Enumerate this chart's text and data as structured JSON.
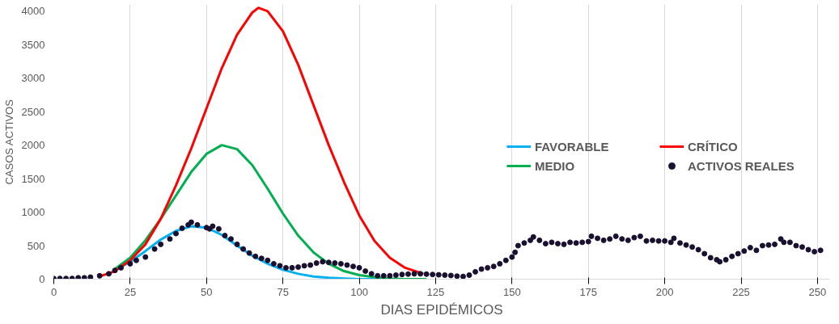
{
  "chart_data": {
    "type": "line",
    "xlabel": "DIAS EPIDÉMICOS",
    "ylabel": "CASOS ACTIVOS",
    "xlim": [
      0,
      254
    ],
    "xticks": [
      0,
      25,
      50,
      75,
      100,
      125,
      150,
      175,
      200,
      225,
      250
    ],
    "ylim": [
      0,
      4100
    ],
    "yticks": [
      0,
      500,
      1000,
      1500,
      2000,
      2500,
      3000,
      3500,
      4000
    ],
    "grid": "x",
    "legend": "right",
    "line_style": "solid",
    "series": [
      {
        "name": "FAVORABLE",
        "color": "#00b0f0",
        "x": [
          20,
          25,
          30,
          35,
          40,
          45,
          50,
          55,
          60,
          65,
          70,
          75,
          80,
          85,
          90,
          95,
          100,
          105,
          110
        ],
        "values": [
          130,
          260,
          420,
          590,
          720,
          790,
          770,
          660,
          500,
          350,
          230,
          140,
          80,
          40,
          20,
          10,
          0,
          0,
          0
        ]
      },
      {
        "name": "MEDIO",
        "color": "#00b050",
        "x": [
          20,
          25,
          30,
          35,
          40,
          45,
          50,
          55,
          60,
          65,
          70,
          75,
          80,
          85,
          90,
          95,
          100,
          105,
          110,
          115,
          122
        ],
        "values": [
          150,
          320,
          580,
          900,
          1250,
          1600,
          1870,
          2000,
          1940,
          1700,
          1350,
          980,
          650,
          400,
          230,
          120,
          60,
          30,
          10,
          0,
          0
        ]
      },
      {
        "name": "CRÍTICO",
        "color": "#ff0000",
        "x": [
          15,
          20,
          25,
          30,
          35,
          40,
          45,
          50,
          55,
          60,
          65,
          67,
          70,
          75,
          80,
          85,
          90,
          95,
          100,
          105,
          110,
          115,
          121
        ],
        "values": [
          40,
          120,
          280,
          520,
          900,
          1400,
          1950,
          2550,
          3150,
          3650,
          3980,
          4050,
          4000,
          3700,
          3200,
          2600,
          2000,
          1450,
          950,
          570,
          320,
          170,
          80
        ]
      },
      {
        "name": "ACTIVOS REALES",
        "type": "scatter",
        "marker": "circle",
        "color": "#1a1030",
        "x": [
          0,
          2,
          4,
          6,
          8,
          10,
          12,
          15,
          18,
          20,
          22,
          25,
          27,
          30,
          33,
          35,
          38,
          40,
          42,
          44,
          45,
          47,
          50,
          51,
          52,
          54,
          56,
          58,
          60,
          62,
          64,
          66,
          68,
          70,
          72,
          74,
          76,
          78,
          80,
          82,
          84,
          86,
          88,
          90,
          92,
          94,
          96,
          98,
          100,
          102,
          104,
          106,
          108,
          110,
          112,
          114,
          116,
          118,
          120,
          122,
          124,
          126,
          128,
          130,
          132,
          134,
          136,
          138,
          140,
          142,
          144,
          146,
          148,
          150,
          151,
          152,
          154,
          156,
          157,
          159,
          161,
          163,
          165,
          167,
          169,
          171,
          173,
          175,
          176,
          178,
          180,
          182,
          184,
          186,
          188,
          190,
          192,
          194,
          196,
          198,
          200,
          202,
          203,
          205,
          207,
          209,
          211,
          213,
          215,
          217,
          218,
          220,
          222,
          224,
          226,
          228,
          230,
          232,
          234,
          236,
          238,
          239,
          241,
          243,
          245,
          247,
          249,
          251
        ],
        "values": [
          10,
          10,
          10,
          10,
          20,
          20,
          30,
          50,
          80,
          130,
          170,
          230,
          280,
          330,
          450,
          520,
          600,
          680,
          760,
          810,
          850,
          810,
          770,
          750,
          790,
          750,
          650,
          600,
          520,
          450,
          390,
          340,
          310,
          280,
          230,
          200,
          170,
          170,
          180,
          200,
          210,
          240,
          260,
          250,
          240,
          230,
          210,
          190,
          170,
          120,
          80,
          50,
          50,
          50,
          60,
          70,
          75,
          80,
          80,
          75,
          70,
          65,
          60,
          55,
          45,
          40,
          60,
          110,
          150,
          170,
          190,
          230,
          280,
          330,
          400,
          500,
          540,
          580,
          630,
          580,
          530,
          550,
          530,
          520,
          550,
          540,
          550,
          560,
          640,
          610,
          580,
          600,
          640,
          600,
          580,
          620,
          640,
          570,
          580,
          570,
          570,
          550,
          610,
          540,
          510,
          480,
          440,
          380,
          320,
          290,
          260,
          290,
          340,
          380,
          420,
          470,
          430,
          500,
          510,
          520,
          600,
          550,
          550,
          500,
          480,
          440,
          410,
          430
        ]
      }
    ]
  }
}
